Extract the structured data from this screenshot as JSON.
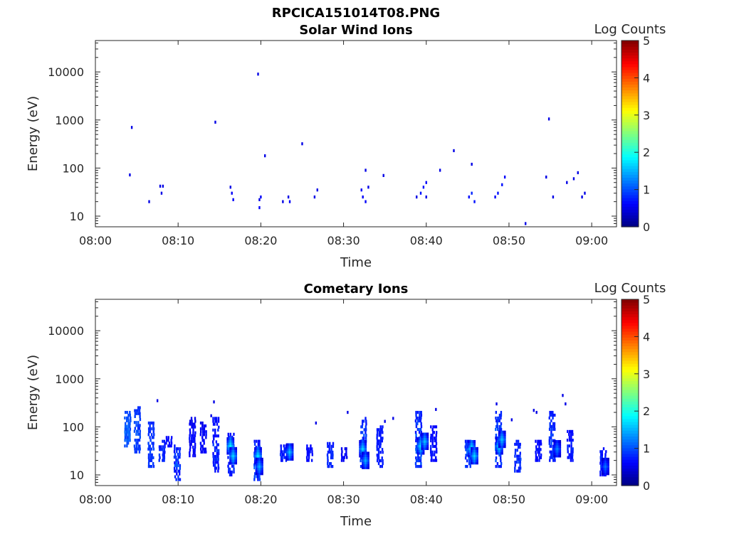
{
  "figure": {
    "title": "RPCICA151014T08.PNG"
  },
  "chart_data": [
    {
      "type": "heatmap",
      "title": "Solar Wind Ions",
      "xlabel": "Time",
      "ylabel": "Energy (eV)",
      "x_range": [
        "08:00",
        "09:03"
      ],
      "x_ticks": [
        "08:00",
        "08:10",
        "08:20",
        "08:30",
        "08:40",
        "08:50",
        "09:00"
      ],
      "y_scale": "log",
      "y_range": [
        6,
        45000
      ],
      "y_ticks": [
        "10",
        "100",
        "1000",
        "10000"
      ],
      "colorbar": {
        "label": "Log Counts",
        "range": [
          0,
          5
        ],
        "ticks": [
          "0",
          "1",
          "2",
          "3",
          "4",
          "5"
        ],
        "colormap": "jet"
      },
      "grid": false,
      "cells": [
        [
          "08:04:24",
          700,
          0.5
        ],
        [
          "08:04:10",
          72,
          0.5
        ],
        [
          "08:06:30",
          20,
          0.5
        ],
        [
          "08:07:50",
          42,
          0.5
        ],
        [
          "08:08:10",
          42,
          0.5
        ],
        [
          "08:08:00",
          30,
          0.5
        ],
        [
          "08:14:30",
          900,
          0.5
        ],
        [
          "08:16:20",
          40,
          0.5
        ],
        [
          "08:16:30",
          30,
          0.6
        ],
        [
          "08:16:40",
          22,
          0.6
        ],
        [
          "08:19:40",
          9000,
          0.5
        ],
        [
          "08:20:30",
          180,
          0.5
        ],
        [
          "08:19:50",
          22,
          0.5
        ],
        [
          "08:20:00",
          25,
          0.6
        ],
        [
          "08:19:50",
          15,
          0.6
        ],
        [
          "08:22:40",
          20,
          0.5
        ],
        [
          "08:23:20",
          25,
          0.5
        ],
        [
          "08:23:30",
          20,
          0.6
        ],
        [
          "08:25:00",
          320,
          0.5
        ],
        [
          "08:26:30",
          25,
          0.5
        ],
        [
          "08:26:50",
          35,
          0.5
        ],
        [
          "08:32:10",
          35,
          0.6
        ],
        [
          "08:32:20",
          25,
          0.6
        ],
        [
          "08:32:40",
          20,
          0.6
        ],
        [
          "08:33:00",
          40,
          0.5
        ],
        [
          "08:32:40",
          90,
          0.5
        ],
        [
          "08:34:50",
          70,
          0.5
        ],
        [
          "08:38:50",
          25,
          0.5
        ],
        [
          "08:39:20",
          30,
          0.7
        ],
        [
          "08:39:40",
          40,
          0.7
        ],
        [
          "08:40:00",
          50,
          0.6
        ],
        [
          "08:40:00",
          25,
          0.5
        ],
        [
          "08:41:40",
          90,
          0.5
        ],
        [
          "08:43:20",
          230,
          0.5
        ],
        [
          "08:45:10",
          25,
          0.7
        ],
        [
          "08:45:30",
          30,
          0.8
        ],
        [
          "08:45:50",
          20,
          0.7
        ],
        [
          "08:45:30",
          120,
          0.5
        ],
        [
          "08:48:20",
          25,
          0.6
        ],
        [
          "08:48:40",
          30,
          0.7
        ],
        [
          "08:49:10",
          45,
          0.7
        ],
        [
          "08:49:30",
          65,
          0.6
        ],
        [
          "08:52:00",
          7,
          0.5
        ],
        [
          "08:54:30",
          65,
          0.5
        ],
        [
          "08:54:50",
          1050,
          0.5
        ],
        [
          "08:55:20",
          25,
          0.5
        ],
        [
          "08:57:00",
          50,
          0.5
        ],
        [
          "08:57:50",
          60,
          0.5
        ],
        [
          "08:58:20",
          80,
          0.5
        ],
        [
          "08:58:50",
          25,
          0.5
        ],
        [
          "08:59:10",
          30,
          0.5
        ]
      ]
    },
    {
      "type": "heatmap",
      "title": "Cometary Ions",
      "xlabel": "Time",
      "ylabel": "Energy (eV)",
      "x_range": [
        "08:00",
        "09:03"
      ],
      "x_ticks": [
        "08:00",
        "08:10",
        "08:20",
        "08:30",
        "08:40",
        "08:50",
        "09:00"
      ],
      "y_scale": "log",
      "y_range": [
        6,
        45000
      ],
      "y_ticks": [
        "10",
        "100",
        "1000",
        "10000"
      ],
      "colorbar": {
        "label": "Log Counts",
        "range": [
          0,
          5
        ],
        "ticks": [
          "0",
          "1",
          "2",
          "3",
          "4",
          "5"
        ],
        "colormap": "jet"
      },
      "grid": false,
      "bursts": [
        [
          "08:04:00",
          40,
          200,
          0.9,
          1.2
        ],
        [
          "08:05:10",
          30,
          250,
          0.8,
          1.1
        ],
        [
          "08:06:50",
          15,
          120,
          0.8,
          1.0
        ],
        [
          "08:08:10",
          20,
          50,
          0.7,
          1.0
        ],
        [
          "08:09:00",
          40,
          60,
          0.6,
          0.8
        ],
        [
          "08:10:00",
          8,
          40,
          0.6,
          1.2
        ],
        [
          "08:11:50",
          25,
          150,
          0.5,
          0.8
        ],
        [
          "08:13:10",
          30,
          120,
          0.5,
          0.8
        ],
        [
          "08:14:40",
          12,
          150,
          0.6,
          1.0
        ],
        [
          "08:16:30",
          10,
          70,
          0.6,
          1.1
        ],
        [
          "08:19:40",
          8,
          50,
          0.6,
          1.4
        ],
        [
          "08:22:50",
          20,
          40,
          0.6,
          1.0
        ],
        [
          "08:26:00",
          20,
          40,
          0.6,
          0.8
        ],
        [
          "08:28:30",
          15,
          45,
          0.7,
          0.9
        ],
        [
          "08:30:10",
          20,
          35,
          0.5,
          0.7
        ],
        [
          "08:32:30",
          15,
          150,
          0.7,
          1.2
        ],
        [
          "08:34:30",
          15,
          100,
          0.7,
          0.8
        ],
        [
          "08:39:10",
          15,
          200,
          0.7,
          1.3
        ],
        [
          "08:41:00",
          20,
          100,
          0.6,
          0.8
        ],
        [
          "08:45:10",
          15,
          50,
          0.7,
          1.3
        ],
        [
          "08:48:50",
          15,
          200,
          0.7,
          1.3
        ],
        [
          "08:51:10",
          12,
          50,
          0.7,
          1.0
        ],
        [
          "08:53:40",
          20,
          50,
          0.6,
          0.8
        ],
        [
          "08:55:20",
          20,
          200,
          0.7,
          1.1
        ],
        [
          "08:57:30",
          20,
          80,
          0.6,
          0.9
        ],
        [
          "09:01:30",
          10,
          35,
          0.6,
          1.0
        ]
      ],
      "peaks": [
        [
          "08:16:20",
          40,
          1.9
        ],
        [
          "08:16:40",
          25,
          1.7
        ],
        [
          "08:19:40",
          25,
          1.8
        ],
        [
          "08:19:50",
          15,
          1.5
        ],
        [
          "08:23:30",
          30,
          1.6
        ],
        [
          "08:32:20",
          35,
          1.7
        ],
        [
          "08:32:40",
          20,
          1.5
        ],
        [
          "08:39:20",
          40,
          1.8
        ],
        [
          "08:39:50",
          50,
          1.6
        ],
        [
          "08:45:30",
          35,
          1.9
        ],
        [
          "08:45:50",
          25,
          1.7
        ],
        [
          "08:48:50",
          40,
          1.8
        ],
        [
          "08:49:10",
          55,
          1.6
        ],
        [
          "08:55:50",
          35,
          1.3
        ],
        [
          "09:01:40",
          15,
          1.2
        ]
      ],
      "dots": [
        [
          "08:07:30",
          350,
          0.5
        ],
        [
          "08:14:20",
          330,
          0.5
        ],
        [
          "08:14:00",
          170,
          0.5
        ],
        [
          "08:26:40",
          120,
          0.5
        ],
        [
          "08:30:30",
          200,
          0.5
        ],
        [
          "08:35:00",
          130,
          0.5
        ],
        [
          "08:36:00",
          150,
          0.5
        ],
        [
          "08:41:10",
          230,
          0.5
        ],
        [
          "08:48:30",
          300,
          0.5
        ],
        [
          "08:50:20",
          140,
          0.5
        ],
        [
          "08:53:00",
          220,
          0.5
        ],
        [
          "08:53:20",
          200,
          0.5
        ],
        [
          "08:56:30",
          450,
          0.5
        ],
        [
          "08:56:50",
          300,
          0.5
        ]
      ]
    }
  ]
}
